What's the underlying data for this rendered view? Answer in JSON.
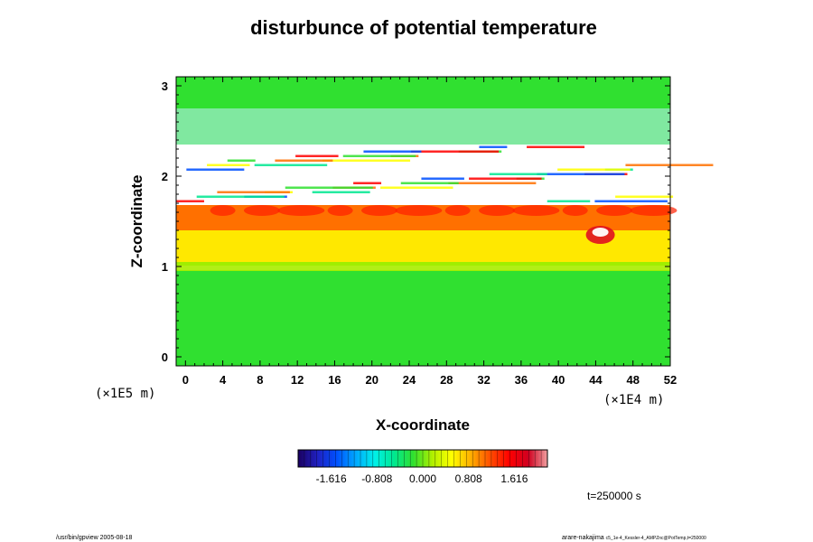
{
  "chart_data": {
    "type": "heatmap",
    "title": "disturbunce of potential temperature",
    "xlabel": "X-coordinate",
    "ylabel": "Z-coordinate",
    "x_scale_label": "(×1E4 m)",
    "y_scale_label": "(×1E5 m)",
    "x_ticks": [
      "0",
      "4",
      "8",
      "12",
      "16",
      "20",
      "24",
      "28",
      "32",
      "36",
      "40",
      "44",
      "48",
      "52"
    ],
    "y_ticks": [
      "0",
      "1",
      "2",
      "3"
    ],
    "xlim": [
      -1,
      52
    ],
    "ylim": [
      -0.1,
      3.1
    ],
    "colorbar": {
      "tick_labels": [
        "-1.616",
        "-0.808",
        "0.000",
        "0.808",
        "1.616"
      ],
      "range": [
        -2.2,
        2.2
      ],
      "colors": [
        "#1a0060",
        "#2020c0",
        "#0050ff",
        "#00a8ff",
        "#00f0e8",
        "#00e890",
        "#30e030",
        "#b0f000",
        "#ffff00",
        "#ffb000",
        "#ff5000",
        "#ff0000",
        "#d00020",
        "#f0a0a0"
      ]
    },
    "field_regions": [
      {
        "z_range": [
          -0.1,
          0.95
        ],
        "value": 0.0,
        "color": "#30e030"
      },
      {
        "z_range": [
          0.95,
          1.05
        ],
        "value": 0.3,
        "color": "#a0ee00"
      },
      {
        "z_range": [
          1.05,
          1.4
        ],
        "value": 0.9,
        "color": "#ffe800"
      },
      {
        "z_range": [
          1.4,
          1.68
        ],
        "value": 1.4,
        "color": "#ff7000"
      },
      {
        "z_range": [
          1.68,
          2.35
        ],
        "value": "out-of-range",
        "color": "#ffffff"
      },
      {
        "z_range": [
          2.35,
          2.75
        ],
        "value": -0.2,
        "color": "#80e8a0"
      },
      {
        "z_range": [
          2.75,
          3.1
        ],
        "value": 0.0,
        "color": "#30e030"
      }
    ],
    "time_label": "t=250000 s",
    "grid": false
  },
  "footer": {
    "left": "/usr/bin/gpview 2005-08-18",
    "right_main": "arare-nakajima",
    "right_small": "c5_1e-4_Kessler-4_AMPZnc@PotTemp,t=250000"
  }
}
